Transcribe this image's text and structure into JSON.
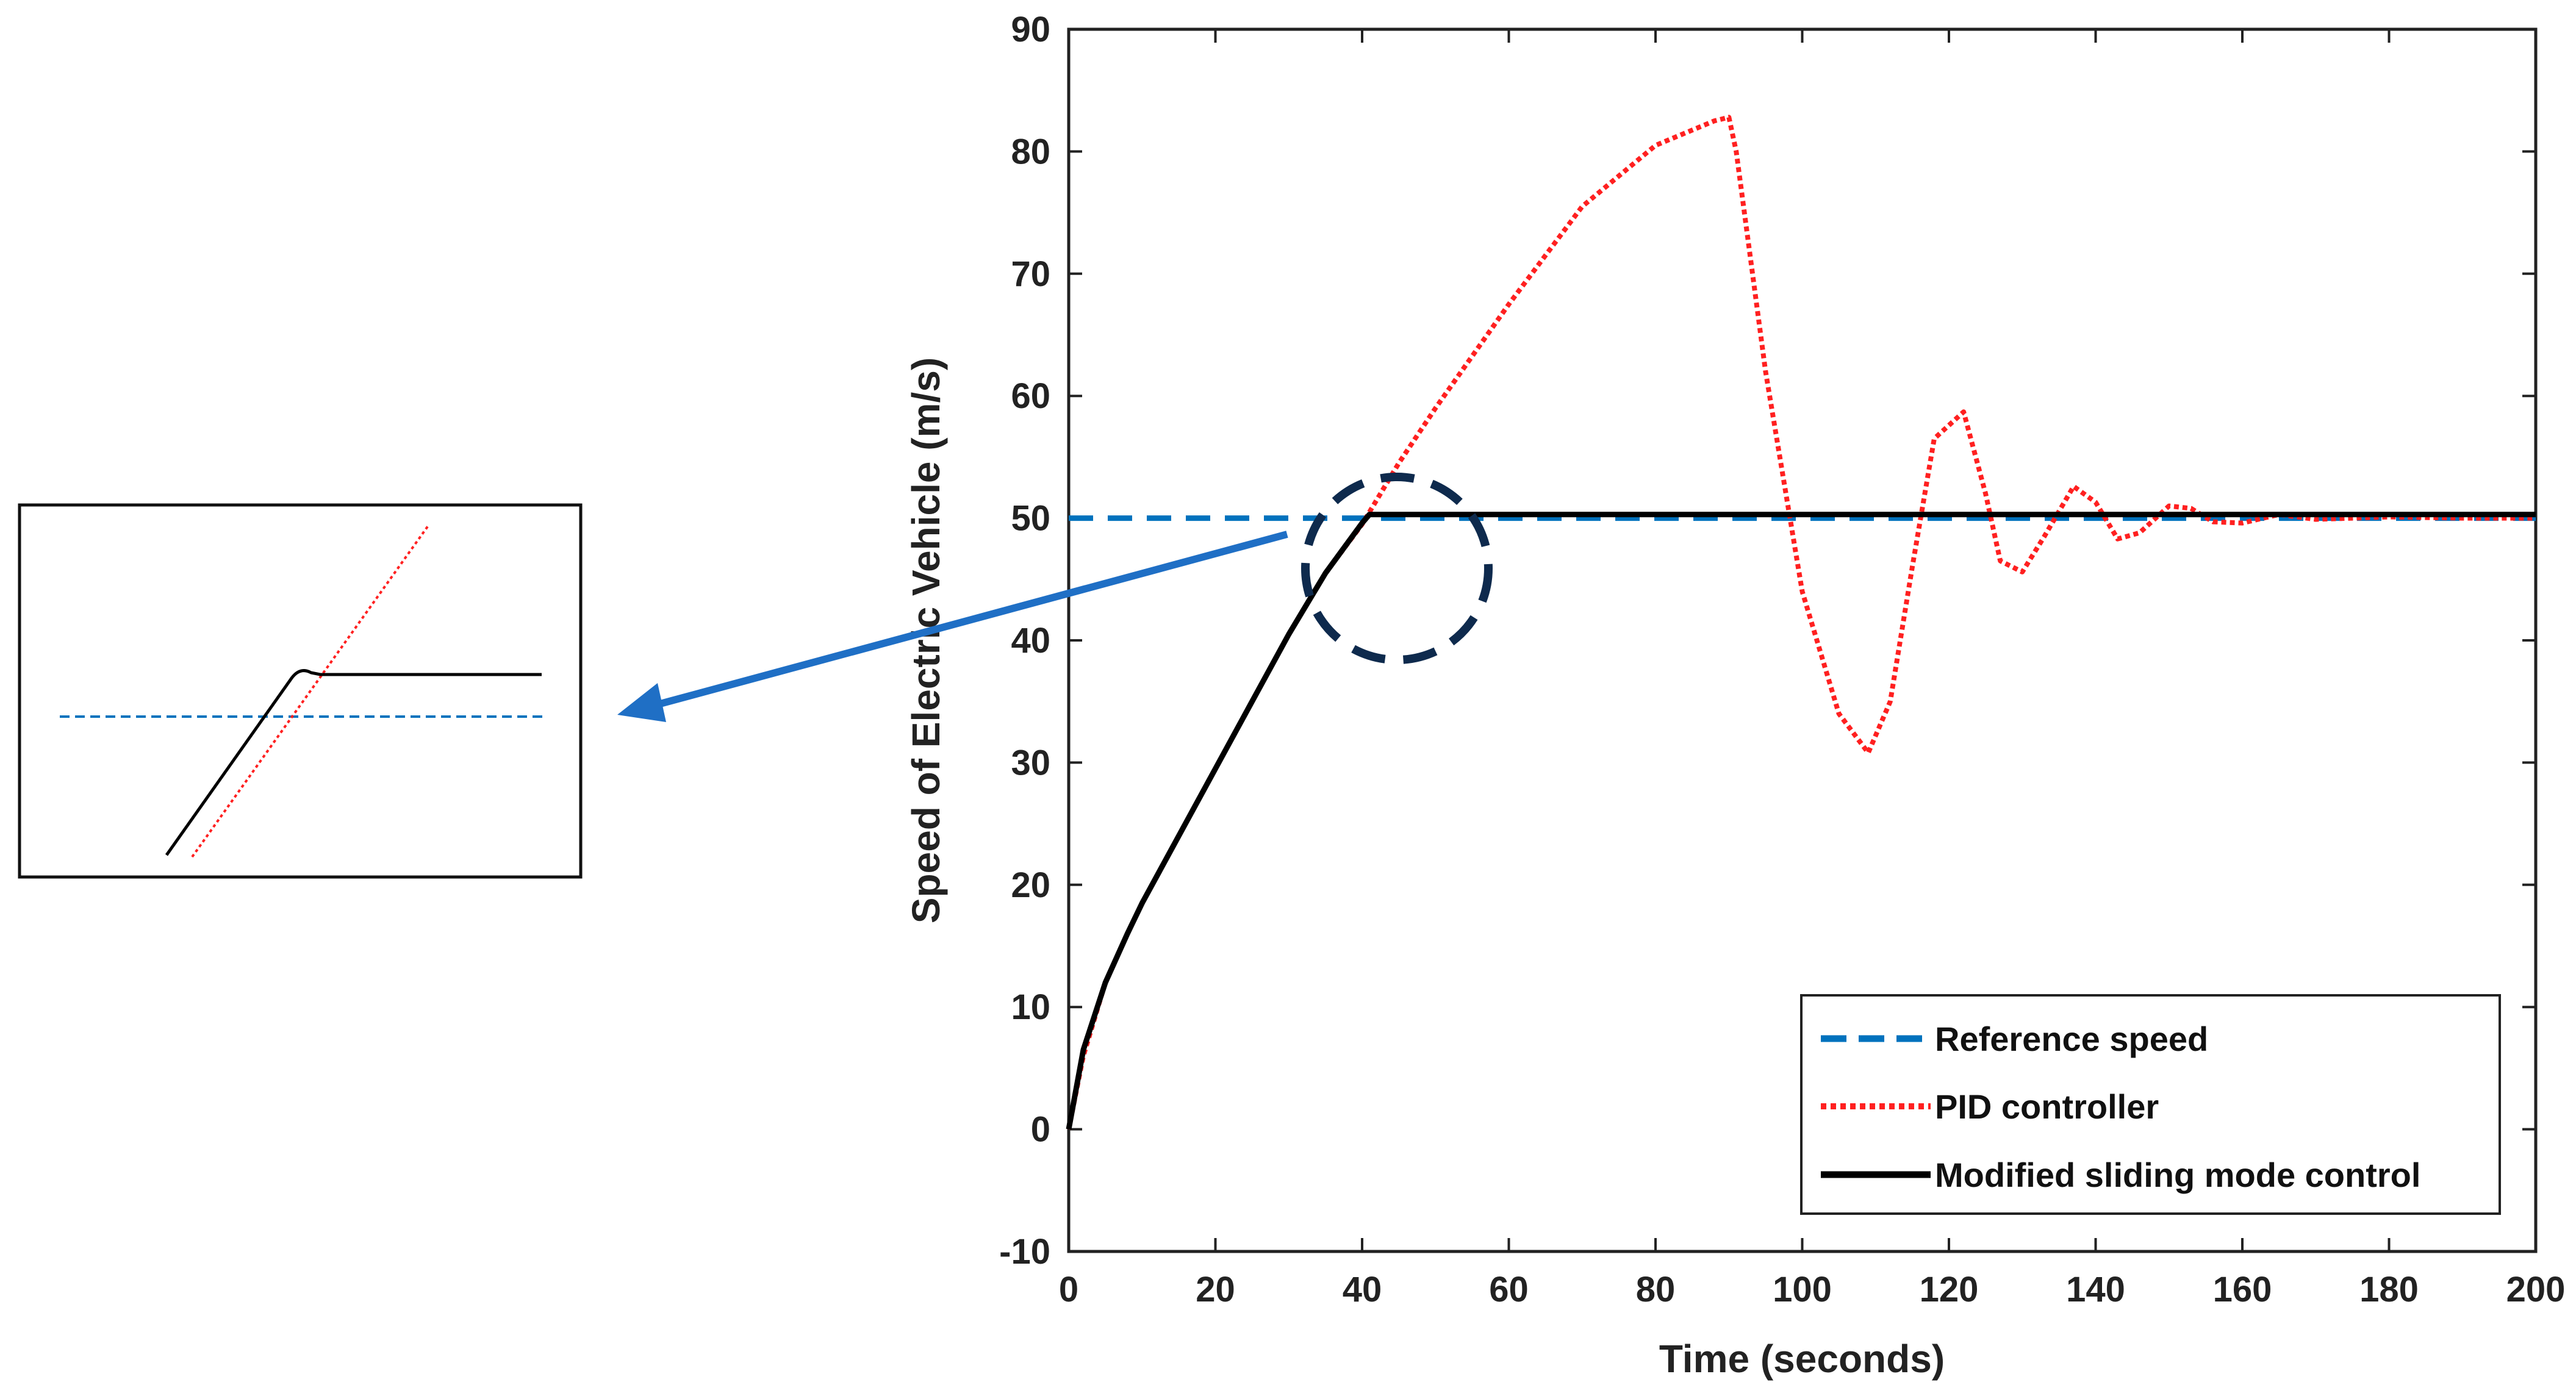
{
  "chart_data": {
    "type": "line",
    "title": "",
    "xlabel": "Time (seconds)",
    "ylabel": "Speed of Electric Vehicle (m/s)",
    "xlim": [
      0,
      200
    ],
    "ylim": [
      -10,
      90
    ],
    "x_ticks": [
      0,
      20,
      40,
      60,
      80,
      100,
      120,
      140,
      160,
      180,
      200
    ],
    "y_ticks": [
      -10,
      0,
      10,
      20,
      30,
      40,
      50,
      60,
      70,
      80,
      90
    ],
    "grid": false,
    "legend_position": "bottom-right",
    "colors": {
      "reference": "#0072BD",
      "pid": "#FF2020",
      "smc": "#000000",
      "arrow": "#1F6FC5",
      "circle": "#0E2A4D"
    },
    "series": [
      {
        "name": "Reference speed",
        "style": "dashed",
        "x": [
          0,
          200
        ],
        "y": [
          50,
          50
        ]
      },
      {
        "name": "PID controller",
        "style": "dotted",
        "x": [
          0,
          2,
          5,
          8,
          10,
          15,
          20,
          25,
          30,
          35,
          40,
          42,
          45,
          50,
          60,
          70,
          80,
          88,
          90,
          91,
          95,
          100,
          105,
          109,
          112,
          115,
          118,
          122,
          125,
          127,
          130,
          133,
          137,
          140,
          143,
          146,
          150,
          153,
          156,
          160,
          165,
          170,
          180,
          190,
          200
        ],
        "y": [
          0,
          6,
          12,
          16,
          18.5,
          24,
          29.5,
          35,
          40.5,
          45.5,
          49.5,
          51.5,
          54.5,
          59,
          67.5,
          75.5,
          80.5,
          82.5,
          82.8,
          80,
          62,
          44,
          34,
          30.8,
          35,
          46,
          56.5,
          58.7,
          52,
          46.5,
          45.6,
          48.5,
          52.6,
          51.3,
          48.3,
          48.8,
          51,
          50.8,
          49.7,
          49.6,
          50.3,
          49.9,
          50.1,
          50,
          50
        ]
      },
      {
        "name": "Modified sliding mode control",
        "style": "solid",
        "x": [
          0,
          2,
          5,
          8,
          10,
          15,
          20,
          25,
          30,
          35,
          40,
          41,
          42,
          60,
          100,
          150,
          200
        ],
        "y": [
          0,
          6.5,
          12,
          16,
          18.5,
          24,
          29.5,
          35,
          40.5,
          45.5,
          49.6,
          50.3,
          50.3,
          50.3,
          50.3,
          50.3,
          50.3
        ]
      }
    ],
    "inset": {
      "description_series": [
        "Reference speed",
        "PID controller",
        "Modified sliding mode control"
      ]
    }
  }
}
